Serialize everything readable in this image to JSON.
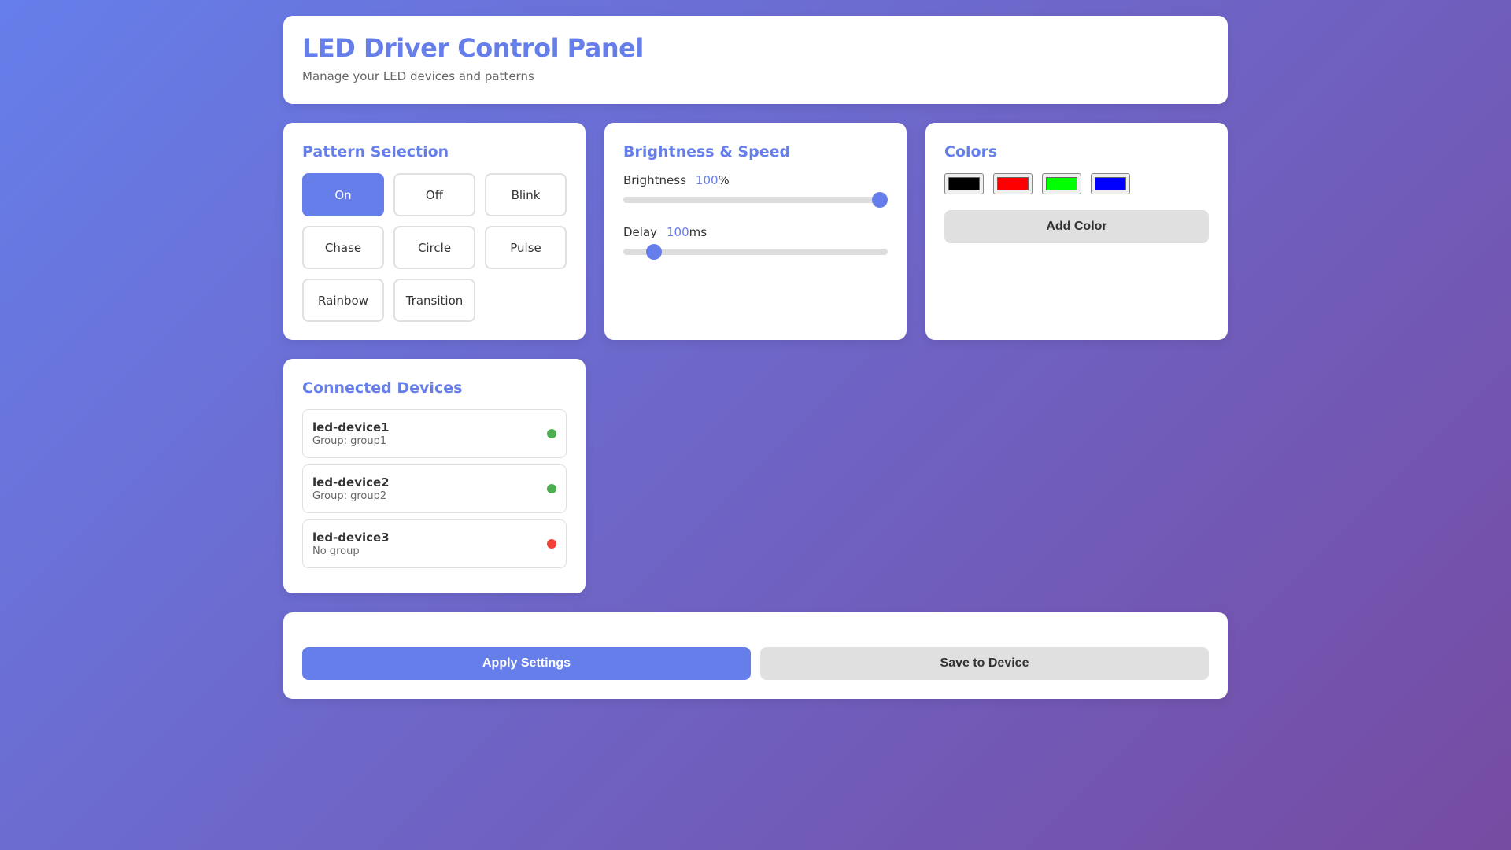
{
  "header": {
    "title": "LED Driver Control Panel",
    "subtitle": "Manage your LED devices and patterns"
  },
  "patterns": {
    "title": "Pattern Selection",
    "items": [
      "On",
      "Off",
      "Blink",
      "Chase",
      "Circle",
      "Pulse",
      "Rainbow",
      "Transition"
    ],
    "selected": "On"
  },
  "brightness_speed": {
    "title": "Brightness & Speed",
    "brightness_label": "Brightness",
    "brightness_value": "100",
    "brightness_unit": "%",
    "brightness_min": 0,
    "brightness_max": 100,
    "delay_label": "Delay",
    "delay_value": "100",
    "delay_unit": "ms",
    "delay_min": 10,
    "delay_max": 1000
  },
  "colors": {
    "title": "Colors",
    "swatches": [
      "#000000",
      "#ff0000",
      "#00ff00",
      "#0000ff"
    ],
    "add_label": "Add Color"
  },
  "devices": {
    "title": "Connected Devices",
    "items": [
      {
        "name": "led-device1",
        "group": "Group: group1",
        "status": "online",
        "color": "#4caf50"
      },
      {
        "name": "led-device2",
        "group": "Group: group2",
        "status": "online",
        "color": "#4caf50"
      },
      {
        "name": "led-device3",
        "group": "No group",
        "status": "offline",
        "color": "#f44336"
      }
    ]
  },
  "actions": {
    "apply_label": "Apply Settings",
    "save_label": "Save to Device"
  },
  "theme": {
    "accent": "#667eea",
    "gradient_end": "#764ba2"
  }
}
